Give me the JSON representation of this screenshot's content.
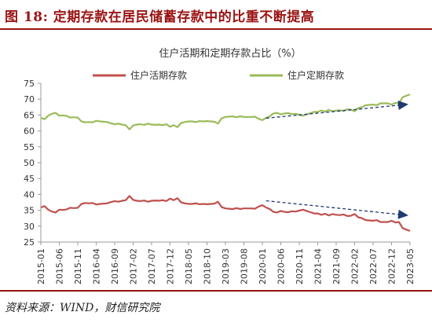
{
  "figure": {
    "title": "图 18:  定期存款在居民储蓄存款中的比重不断提高",
    "source": "资料来源：WIND，财信研究院"
  },
  "chart_data": {
    "type": "line",
    "title": "住户活期和定期存款占比（%）",
    "xlabel": "",
    "ylabel": "",
    "ylim": [
      25,
      75
    ],
    "yticks": [
      25,
      30,
      35,
      40,
      45,
      50,
      55,
      60,
      65,
      70,
      75
    ],
    "grid": false,
    "legend_position": "top",
    "x_tick_labels": [
      "2015-01",
      "2015-06",
      "2015-11",
      "2016-04",
      "2016-09",
      "2017-02",
      "2017-07",
      "2017-12",
      "2018-05",
      "2018-10",
      "2019-03",
      "2019-08",
      "2020-01",
      "2020-06",
      "2020-11",
      "2021-04",
      "2021-09",
      "2022-02",
      "2022-07",
      "2022-12",
      "2023-05"
    ],
    "x": [
      "2015-01",
      "2015-02",
      "2015-03",
      "2015-04",
      "2015-05",
      "2015-06",
      "2015-07",
      "2015-08",
      "2015-09",
      "2015-10",
      "2015-11",
      "2015-12",
      "2016-01",
      "2016-02",
      "2016-03",
      "2016-04",
      "2016-05",
      "2016-06",
      "2016-07",
      "2016-08",
      "2016-09",
      "2016-10",
      "2016-11",
      "2016-12",
      "2017-01",
      "2017-02",
      "2017-03",
      "2017-04",
      "2017-05",
      "2017-06",
      "2017-07",
      "2017-08",
      "2017-09",
      "2017-10",
      "2017-11",
      "2017-12",
      "2018-01",
      "2018-02",
      "2018-03",
      "2018-04",
      "2018-05",
      "2018-06",
      "2018-07",
      "2018-08",
      "2018-09",
      "2018-10",
      "2018-11",
      "2018-12",
      "2019-01",
      "2019-02",
      "2019-03",
      "2019-04",
      "2019-05",
      "2019-06",
      "2019-07",
      "2019-08",
      "2019-09",
      "2019-10",
      "2019-11",
      "2019-12",
      "2020-01",
      "2020-02",
      "2020-03",
      "2020-04",
      "2020-05",
      "2020-06",
      "2020-07",
      "2020-08",
      "2020-09",
      "2020-10",
      "2020-11",
      "2020-12",
      "2021-01",
      "2021-02",
      "2021-03",
      "2021-04",
      "2021-05",
      "2021-06",
      "2021-07",
      "2021-08",
      "2021-09",
      "2021-10",
      "2021-11",
      "2021-12",
      "2022-01",
      "2022-02",
      "2022-03",
      "2022-04",
      "2022-05",
      "2022-06",
      "2022-07",
      "2022-08",
      "2022-09",
      "2022-10",
      "2022-11",
      "2022-12",
      "2023-01",
      "2023-02",
      "2023-03",
      "2023-04",
      "2023-05"
    ],
    "series": [
      {
        "name": "住户活期存款",
        "color": "#c0504d",
        "values": [
          35.9,
          36.3,
          35.2,
          34.6,
          34.3,
          35.2,
          35.1,
          35.3,
          35.8,
          35.7,
          35.8,
          37.0,
          37.3,
          37.2,
          37.3,
          36.8,
          37.0,
          37.1,
          37.2,
          37.6,
          37.9,
          37.7,
          38.0,
          38.2,
          39.5,
          38.3,
          38.0,
          37.9,
          38.1,
          37.7,
          38.0,
          38.1,
          38.0,
          38.2,
          37.9,
          38.7,
          38.2,
          38.8,
          37.5,
          37.2,
          37.0,
          37.0,
          37.2,
          36.9,
          37.0,
          36.9,
          37.0,
          37.1,
          37.7,
          36.0,
          35.6,
          35.5,
          35.4,
          35.7,
          35.4,
          35.6,
          35.6,
          35.6,
          35.5,
          36.2,
          36.6,
          35.9,
          35.4,
          34.5,
          34.3,
          34.8,
          34.5,
          34.4,
          34.7,
          34.6,
          34.9,
          35.2,
          34.8,
          34.4,
          34.0,
          34.0,
          33.6,
          33.9,
          33.4,
          33.8,
          33.6,
          33.5,
          33.7,
          33.2,
          33.3,
          33.8,
          32.8,
          32.5,
          31.9,
          31.8,
          31.7,
          31.9,
          31.3,
          31.3,
          31.3,
          31.7,
          31.2,
          31.3,
          29.4,
          28.9,
          28.5
        ]
      },
      {
        "name": "住户定期存款",
        "color": "#9bbb59",
        "values": [
          64.1,
          63.7,
          64.8,
          65.4,
          65.7,
          64.8,
          64.9,
          64.7,
          64.2,
          64.3,
          64.2,
          63.0,
          62.7,
          62.8,
          62.7,
          63.2,
          63.0,
          62.9,
          62.8,
          62.4,
          62.1,
          62.3,
          62.0,
          61.8,
          60.5,
          61.7,
          62.0,
          62.1,
          61.9,
          62.3,
          62.0,
          61.9,
          62.0,
          61.8,
          62.1,
          61.3,
          61.8,
          61.2,
          62.5,
          62.8,
          63.0,
          63.0,
          62.8,
          63.1,
          63.0,
          63.1,
          63.0,
          62.9,
          62.3,
          64.0,
          64.4,
          64.5,
          64.6,
          64.3,
          64.6,
          64.4,
          64.4,
          64.4,
          64.5,
          63.8,
          63.4,
          64.1,
          64.6,
          65.5,
          65.7,
          65.2,
          65.5,
          65.6,
          65.3,
          65.4,
          65.1,
          64.8,
          65.2,
          65.6,
          66.0,
          66.0,
          66.4,
          66.1,
          66.6,
          66.2,
          66.4,
          66.5,
          66.3,
          66.8,
          66.7,
          66.2,
          67.2,
          67.5,
          68.1,
          68.2,
          68.3,
          68.1,
          68.7,
          68.7,
          68.7,
          68.3,
          68.8,
          68.7,
          70.6,
          71.1,
          71.5
        ]
      }
    ],
    "annotations": [
      {
        "type": "trend-arrow",
        "series": "住户定期存款",
        "from": {
          "x": "2020-02",
          "y": 64.0
        },
        "to": {
          "x": "2023-05",
          "y": 68.4
        },
        "color": "#1f3a73"
      },
      {
        "type": "trend-arrow",
        "series": "住户活期存款",
        "from": {
          "x": "2020-02",
          "y": 38.0
        },
        "to": {
          "x": "2023-05",
          "y": 33.4
        },
        "color": "#1f3a73"
      }
    ]
  }
}
